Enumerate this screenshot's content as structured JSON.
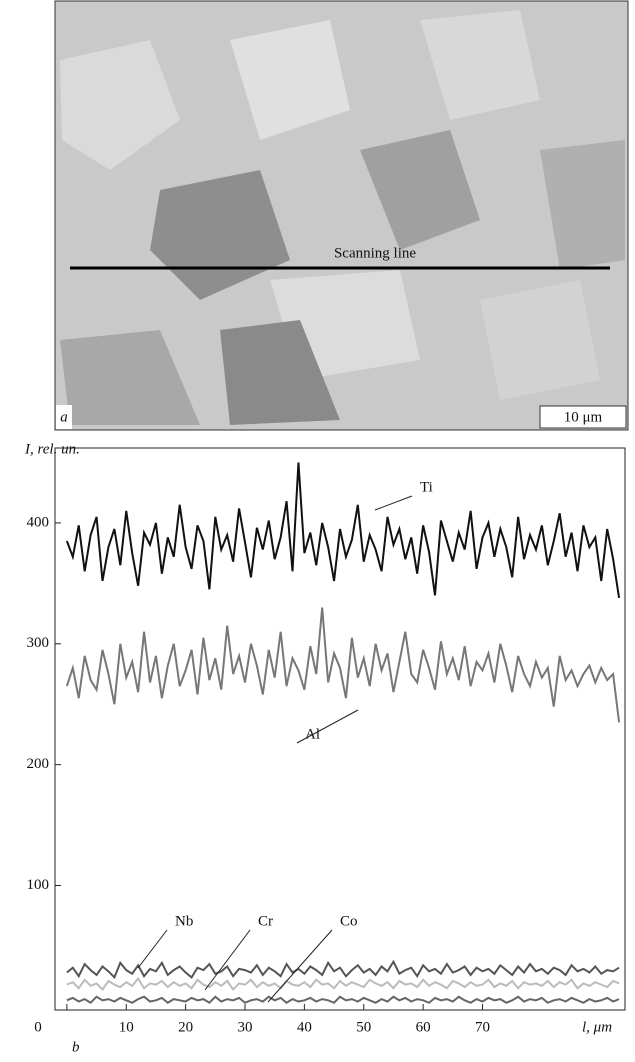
{
  "micrograph": {
    "panel_label": "a",
    "scan_label": "Scanning line",
    "scale_bar": "10 μm"
  },
  "chart_data": {
    "type": "line",
    "panel_label": "b",
    "y_label": "I, rel. un.",
    "x_label": "l, μm",
    "xlim": [
      -2,
      94
    ],
    "ylim": [
      -3,
      462
    ],
    "xticks": [
      0,
      10,
      20,
      30,
      40,
      50,
      60,
      70
    ],
    "yticks": [
      100,
      200,
      300,
      400
    ],
    "x": [
      0,
      1,
      2,
      3,
      4,
      5,
      6,
      7,
      8,
      9,
      10,
      11,
      12,
      13,
      14,
      15,
      16,
      17,
      18,
      19,
      20,
      21,
      22,
      23,
      24,
      25,
      26,
      27,
      28,
      29,
      30,
      31,
      32,
      33,
      34,
      35,
      36,
      37,
      38,
      39,
      40,
      41,
      42,
      43,
      44,
      45,
      46,
      47,
      48,
      49,
      50,
      51,
      52,
      53,
      54,
      55,
      56,
      57,
      58,
      59,
      60,
      61,
      62,
      63,
      64,
      65,
      66,
      67,
      68,
      69,
      70,
      71,
      72,
      73,
      74,
      75,
      76,
      77,
      78,
      79,
      80,
      81,
      82,
      83,
      84,
      85,
      86,
      87,
      88,
      89,
      90,
      91,
      92,
      93
    ],
    "series": [
      {
        "name": "Ti",
        "color": "#111111",
        "values": [
          385,
          372,
          398,
          360,
          390,
          405,
          352,
          380,
          395,
          365,
          410,
          375,
          348,
          392,
          382,
          400,
          358,
          388,
          372,
          415,
          380,
          362,
          398,
          385,
          345,
          405,
          378,
          390,
          368,
          412,
          384,
          355,
          396,
          378,
          402,
          370,
          388,
          418,
          360,
          450,
          375,
          392,
          365,
          400,
          380,
          352,
          395,
          372,
          386,
          415,
          368,
          390,
          378,
          360,
          405,
          382,
          395,
          370,
          388,
          358,
          398,
          376,
          340,
          402,
          385,
          368,
          392,
          378,
          410,
          362,
          388,
          400,
          372,
          395,
          380,
          355,
          405,
          370,
          390,
          378,
          398,
          365,
          385,
          408,
          372,
          392,
          360,
          398,
          380,
          388,
          352,
          395,
          370,
          338
        ]
      },
      {
        "name": "Al",
        "color": "#777777",
        "values": [
          265,
          280,
          255,
          290,
          270,
          262,
          295,
          275,
          250,
          300,
          272,
          285,
          260,
          310,
          268,
          290,
          255,
          282,
          300,
          265,
          278,
          295,
          258,
          305,
          270,
          288,
          262,
          315,
          275,
          290,
          268,
          300,
          282,
          258,
          295,
          272,
          310,
          265,
          288,
          278,
          262,
          298,
          275,
          330,
          268,
          292,
          280,
          255,
          305,
          272,
          288,
          265,
          300,
          278,
          292,
          260,
          285,
          310,
          275,
          268,
          295,
          280,
          262,
          302,
          275,
          288,
          270,
          298,
          265,
          285,
          278,
          292,
          268,
          300,
          282,
          260,
          290,
          275,
          265,
          285,
          272,
          280,
          248,
          290,
          270,
          278,
          265,
          275,
          282,
          268,
          280,
          270,
          275,
          235
        ]
      },
      {
        "name": "Nb",
        "color": "#555555",
        "values": [
          28,
          32,
          25,
          35,
          30,
          26,
          33,
          29,
          24,
          36,
          30,
          27,
          34,
          25,
          31,
          29,
          36,
          26,
          30,
          33,
          28,
          24,
          32,
          30,
          35,
          27,
          29,
          33,
          25,
          31,
          30,
          28,
          34,
          26,
          32,
          29,
          25,
          35,
          28,
          31,
          27,
          33,
          30,
          26,
          36,
          29,
          32,
          25,
          30,
          34,
          28,
          31,
          26,
          33,
          29,
          37,
          27,
          30,
          32,
          25,
          34,
          29,
          31,
          27,
          35,
          28,
          30,
          33,
          26,
          32,
          29,
          31,
          27,
          34,
          30,
          26,
          33,
          28,
          35,
          29,
          31,
          27,
          32,
          30,
          26,
          34,
          29,
          31,
          28,
          33,
          27,
          30,
          29,
          32
        ]
      },
      {
        "name": "Cr",
        "color": "#bbbbbb",
        "values": [
          18,
          20,
          15,
          22,
          17,
          19,
          14,
          21,
          18,
          16,
          20,
          17,
          23,
          15,
          19,
          18,
          21,
          16,
          20,
          17,
          19,
          15,
          22,
          18,
          16,
          20,
          17,
          21,
          14,
          19,
          18,
          22,
          16,
          20,
          17,
          19,
          15,
          21,
          18,
          17,
          20,
          16,
          22,
          18,
          19,
          15,
          21,
          17,
          20,
          18,
          16,
          22,
          19,
          17,
          20,
          15,
          21,
          18,
          19,
          16,
          22,
          17,
          20,
          18,
          15,
          21,
          19,
          16,
          20,
          17,
          18,
          22,
          16,
          19,
          17,
          21,
          15,
          20,
          18,
          19,
          17,
          21,
          16,
          20,
          18,
          22,
          15,
          19,
          17,
          20,
          18,
          16,
          21,
          19
        ]
      },
      {
        "name": "Co",
        "color": "#666666",
        "values": [
          5,
          7,
          4,
          6,
          3,
          8,
          5,
          6,
          4,
          7,
          5,
          3,
          6,
          8,
          4,
          5,
          7,
          3,
          6,
          5,
          4,
          7,
          5,
          6,
          3,
          8,
          4,
          6,
          5,
          7,
          3,
          5,
          6,
          4,
          8,
          5,
          7,
          3,
          6,
          4,
          5,
          7,
          4,
          6,
          5,
          3,
          8,
          5,
          6,
          4,
          7,
          5,
          3,
          6,
          4,
          8,
          5,
          7,
          4,
          6,
          5,
          3,
          7,
          5,
          6,
          4,
          8,
          5,
          3,
          6,
          4,
          7,
          5,
          6,
          3,
          5,
          8,
          4,
          6,
          5,
          7,
          3,
          5,
          6,
          4,
          7,
          5,
          3,
          6,
          4,
          5,
          7,
          4,
          6
        ]
      }
    ]
  }
}
